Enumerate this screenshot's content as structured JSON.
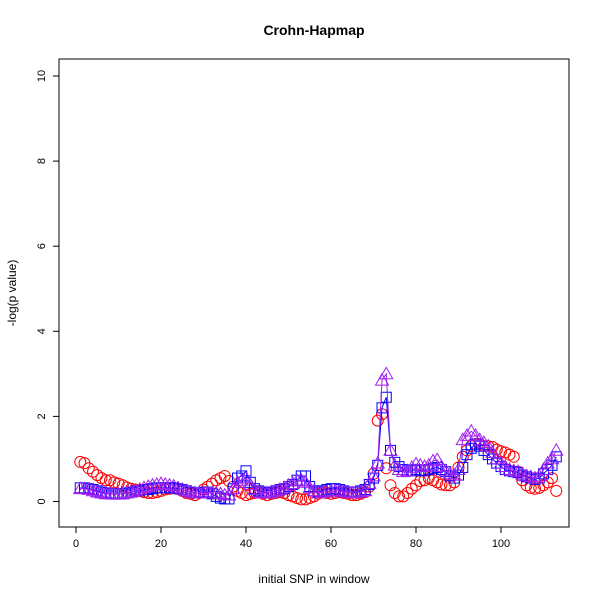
{
  "chart_data": {
    "type": "scatter",
    "title": "Crohn-Hapmap",
    "xlabel": "initial SNP in window",
    "ylabel": "-log(p value)",
    "xlim": [
      -4,
      116
    ],
    "ylim": [
      -0.6,
      10.4
    ],
    "x_ticks": [
      0,
      20,
      40,
      60,
      80,
      100
    ],
    "y_ticks": [
      0,
      2,
      4,
      6,
      8,
      10
    ],
    "grid": false,
    "series": [
      {
        "marker": "circle",
        "color": "#ff0000",
        "line": false,
        "x": [
          1,
          2,
          3,
          4,
          5,
          6,
          7,
          8,
          9,
          10,
          11,
          12,
          13,
          14,
          15,
          16,
          17,
          18,
          19,
          20,
          21,
          22,
          23,
          24,
          25,
          26,
          27,
          28,
          29,
          30,
          31,
          32,
          33,
          34,
          35,
          36,
          37,
          38,
          39,
          40,
          41,
          42,
          43,
          44,
          45,
          46,
          47,
          48,
          49,
          50,
          51,
          52,
          53,
          54,
          55,
          56,
          57,
          58,
          59,
          60,
          61,
          62,
          63,
          64,
          65,
          66,
          67,
          68,
          69,
          70,
          71,
          72,
          73,
          74,
          75,
          76,
          77,
          78,
          79,
          80,
          81,
          82,
          83,
          84,
          85,
          86,
          87,
          88,
          89,
          90,
          91,
          92,
          93,
          94,
          95,
          96,
          97,
          98,
          99,
          100,
          101,
          102,
          103,
          104,
          105,
          106,
          107,
          108,
          109,
          110,
          111,
          112,
          113
        ],
        "y": [
          0.93,
          0.9,
          0.78,
          0.7,
          0.62,
          0.55,
          0.5,
          0.5,
          0.45,
          0.42,
          0.38,
          0.33,
          0.3,
          0.28,
          0.25,
          0.22,
          0.2,
          0.2,
          0.22,
          0.25,
          0.28,
          0.3,
          0.32,
          0.3,
          0.25,
          0.2,
          0.18,
          0.15,
          0.2,
          0.28,
          0.35,
          0.42,
          0.5,
          0.55,
          0.6,
          0.48,
          0.35,
          0.25,
          0.2,
          0.15,
          0.18,
          0.2,
          0.22,
          0.18,
          0.15,
          0.18,
          0.2,
          0.22,
          0.2,
          0.15,
          0.12,
          0.08,
          0.05,
          0.05,
          0.08,
          0.12,
          0.18,
          0.22,
          0.2,
          0.18,
          0.2,
          0.22,
          0.2,
          0.18,
          0.15,
          0.15,
          0.18,
          0.22,
          0.35,
          0.65,
          1.9,
          2.05,
          0.78,
          0.38,
          0.2,
          0.12,
          0.12,
          0.2,
          0.3,
          0.38,
          0.48,
          0.5,
          0.55,
          0.5,
          0.45,
          0.4,
          0.38,
          0.38,
          0.45,
          0.8,
          1.05,
          1.2,
          1.3,
          1.35,
          1.35,
          1.3,
          1.3,
          1.28,
          1.22,
          1.18,
          1.15,
          1.1,
          1.05,
          0.7,
          0.5,
          0.38,
          0.32,
          0.3,
          0.32,
          0.38,
          0.45,
          0.55,
          0.25
        ]
      },
      {
        "marker": "square",
        "color": "#0000ff",
        "line": true,
        "x": [
          1,
          2,
          3,
          4,
          5,
          6,
          7,
          8,
          9,
          10,
          11,
          12,
          13,
          14,
          15,
          16,
          17,
          18,
          19,
          20,
          21,
          22,
          23,
          24,
          25,
          26,
          27,
          28,
          29,
          30,
          31,
          32,
          33,
          34,
          35,
          36,
          37,
          38,
          39,
          40,
          41,
          42,
          43,
          44,
          45,
          46,
          47,
          48,
          49,
          50,
          51,
          52,
          53,
          54,
          55,
          56,
          57,
          58,
          59,
          60,
          61,
          62,
          63,
          64,
          65,
          66,
          67,
          68,
          69,
          70,
          71,
          72,
          73,
          74,
          75,
          76,
          77,
          78,
          79,
          80,
          81,
          82,
          83,
          84,
          85,
          86,
          87,
          88,
          89,
          90,
          91,
          92,
          93,
          94,
          95,
          96,
          97,
          98,
          99,
          100,
          101,
          102,
          103,
          104,
          105,
          106,
          107,
          108,
          109,
          110,
          111,
          112,
          113
        ],
        "y": [
          0.32,
          0.32,
          0.3,
          0.28,
          0.25,
          0.22,
          0.2,
          0.18,
          0.18,
          0.18,
          0.18,
          0.2,
          0.22,
          0.25,
          0.25,
          0.28,
          0.28,
          0.3,
          0.32,
          0.32,
          0.32,
          0.32,
          0.32,
          0.3,
          0.28,
          0.25,
          0.22,
          0.2,
          0.2,
          0.22,
          0.22,
          0.18,
          0.12,
          0.08,
          0.06,
          0.06,
          0.3,
          0.55,
          0.6,
          0.72,
          0.45,
          0.3,
          0.25,
          0.22,
          0.2,
          0.22,
          0.25,
          0.28,
          0.3,
          0.35,
          0.4,
          0.5,
          0.6,
          0.6,
          0.35,
          0.25,
          0.22,
          0.25,
          0.28,
          0.3,
          0.3,
          0.28,
          0.25,
          0.22,
          0.22,
          0.22,
          0.25,
          0.28,
          0.4,
          0.55,
          0.85,
          2.2,
          2.45,
          1.2,
          0.92,
          0.82,
          0.75,
          0.72,
          0.72,
          0.75,
          0.72,
          0.72,
          0.75,
          0.78,
          0.8,
          0.75,
          0.7,
          0.6,
          0.55,
          0.62,
          0.8,
          1.1,
          1.25,
          1.35,
          1.3,
          1.2,
          1.1,
          1.0,
          0.9,
          0.82,
          0.75,
          0.72,
          0.7,
          0.68,
          0.62,
          0.58,
          0.55,
          0.52,
          0.55,
          0.65,
          0.75,
          0.85,
          1.05
        ]
      },
      {
        "marker": "triangle",
        "color": "#a020f0",
        "line": true,
        "x": [
          1,
          2,
          3,
          4,
          5,
          6,
          7,
          8,
          9,
          10,
          11,
          12,
          13,
          14,
          15,
          16,
          17,
          18,
          19,
          20,
          21,
          22,
          23,
          24,
          25,
          26,
          27,
          28,
          29,
          30,
          31,
          32,
          33,
          34,
          35,
          36,
          37,
          38,
          39,
          40,
          41,
          42,
          43,
          44,
          45,
          46,
          47,
          48,
          49,
          50,
          51,
          52,
          53,
          54,
          55,
          56,
          57,
          58,
          59,
          60,
          61,
          62,
          63,
          64,
          65,
          66,
          67,
          68,
          69,
          70,
          71,
          72,
          73,
          74,
          75,
          76,
          77,
          78,
          79,
          80,
          81,
          82,
          83,
          84,
          85,
          86,
          87,
          88,
          89,
          90,
          91,
          92,
          93,
          94,
          95,
          96,
          97,
          98,
          99,
          100,
          101,
          102,
          103,
          104,
          105,
          106,
          107,
          108,
          109,
          110,
          111,
          112,
          113
        ],
        "y": [
          0.3,
          0.3,
          0.28,
          0.25,
          0.22,
          0.2,
          0.18,
          0.18,
          0.17,
          0.17,
          0.18,
          0.2,
          0.22,
          0.25,
          0.28,
          0.32,
          0.35,
          0.38,
          0.4,
          0.42,
          0.4,
          0.38,
          0.36,
          0.32,
          0.28,
          0.25,
          0.22,
          0.2,
          0.2,
          0.2,
          0.2,
          0.2,
          0.2,
          0.18,
          0.15,
          0.15,
          0.3,
          0.45,
          0.5,
          0.55,
          0.4,
          0.28,
          0.22,
          0.2,
          0.2,
          0.22,
          0.25,
          0.28,
          0.32,
          0.38,
          0.42,
          0.48,
          0.5,
          0.45,
          0.32,
          0.25,
          0.2,
          0.22,
          0.22,
          0.25,
          0.25,
          0.25,
          0.22,
          0.22,
          0.2,
          0.2,
          0.22,
          0.25,
          0.42,
          0.6,
          0.9,
          2.85,
          3.0,
          1.2,
          0.85,
          0.75,
          0.7,
          0.72,
          0.8,
          0.88,
          0.85,
          0.82,
          0.85,
          0.95,
          0.98,
          0.82,
          0.72,
          0.65,
          0.62,
          0.75,
          1.45,
          1.55,
          1.65,
          1.55,
          1.45,
          1.38,
          1.3,
          1.15,
          1.0,
          0.9,
          0.82,
          0.75,
          0.72,
          0.7,
          0.65,
          0.6,
          0.58,
          0.55,
          0.6,
          0.75,
          0.9,
          1.0,
          1.2
        ]
      }
    ]
  }
}
